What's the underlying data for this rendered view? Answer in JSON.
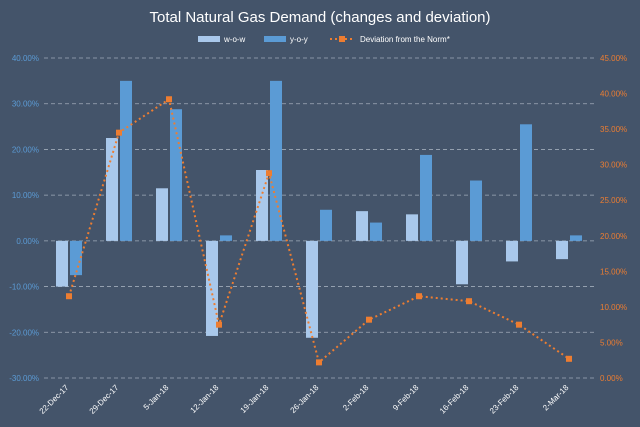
{
  "chart_data": {
    "type": "bar",
    "title": "Total Natural Gas Demand (changes and deviation)",
    "categories": [
      "22-Dec-17",
      "29-Dec-17",
      "5-Jan-18",
      "12-Jan-18",
      "19-Jan-18",
      "26-Jan-18",
      "2-Feb-18",
      "9-Feb-18",
      "16-Feb-18",
      "23-Feb-18",
      "2-Mar-18"
    ],
    "series": [
      {
        "name": "w-o-w",
        "type": "bar",
        "axis": "left",
        "color": "#A9C8EB",
        "values": [
          -10.0,
          22.5,
          11.5,
          -20.8,
          15.5,
          -21.2,
          6.5,
          5.8,
          -9.5,
          -4.5,
          -4.0
        ]
      },
      {
        "name": "y-o-y",
        "type": "bar",
        "axis": "left",
        "color": "#5B9BD5",
        "values": [
          -7.5,
          35.0,
          28.8,
          1.2,
          35.0,
          6.8,
          4.0,
          18.8,
          13.2,
          25.5,
          1.2
        ]
      },
      {
        "name": "Deviation from the Norm*",
        "type": "line",
        "axis": "right",
        "color": "#ED7D31",
        "values": [
          11.5,
          34.5,
          39.2,
          7.5,
          28.8,
          2.2,
          8.2,
          11.5,
          10.8,
          7.5,
          2.7
        ]
      }
    ],
    "y_left": {
      "min": -30,
      "max": 40,
      "step": 10,
      "tick_labels": [
        "-30.00%",
        "-20.00%",
        "-10.00%",
        "0.00%",
        "10.00%",
        "20.00%",
        "30.00%",
        "40.00%"
      ]
    },
    "y_right": {
      "min": 0,
      "max": 45,
      "step": 5,
      "tick_labels": [
        "0.00%",
        "5.00%",
        "10.00%",
        "15.00%",
        "20.00%",
        "25.00%",
        "30.00%",
        "35.00%",
        "40.00%",
        "45.00%"
      ]
    },
    "grid": true,
    "legend_position": "top-center",
    "colors": {
      "background": "#44546A",
      "text": "#FFFFFF",
      "grid": "#BFC8D4",
      "tick_left": "#5B9BD5",
      "tick_right": "#ED7D31"
    }
  }
}
